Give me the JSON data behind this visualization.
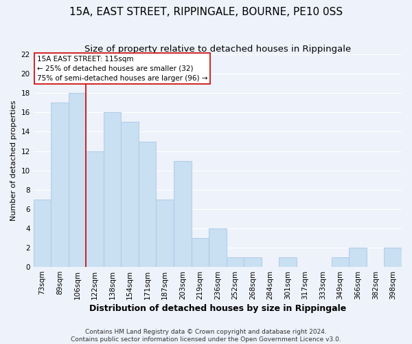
{
  "title": "15A, EAST STREET, RIPPINGALE, BOURNE, PE10 0SS",
  "subtitle": "Size of property relative to detached houses in Rippingale",
  "xlabel": "Distribution of detached houses by size in Rippingale",
  "ylabel": "Number of detached properties",
  "bar_labels": [
    "73sqm",
    "89sqm",
    "106sqm",
    "122sqm",
    "138sqm",
    "154sqm",
    "171sqm",
    "187sqm",
    "203sqm",
    "219sqm",
    "236sqm",
    "252sqm",
    "268sqm",
    "284sqm",
    "301sqm",
    "317sqm",
    "333sqm",
    "349sqm",
    "366sqm",
    "382sqm",
    "398sqm"
  ],
  "bar_values": [
    7,
    17,
    18,
    12,
    16,
    15,
    13,
    7,
    11,
    3,
    4,
    1,
    1,
    0,
    1,
    0,
    0,
    1,
    2,
    0,
    2
  ],
  "bar_color": "#c9dff2",
  "bar_edge_color": "#a8c8e8",
  "vline_x": 2.5,
  "vline_color": "#cc0000",
  "annotation_title": "15A EAST STREET: 115sqm",
  "annotation_line1": "← 25% of detached houses are smaller (32)",
  "annotation_line2": "75% of semi-detached houses are larger (96) →",
  "annotation_box_color": "#ffffff",
  "annotation_box_edge": "#cc0000",
  "ylim": [
    0,
    22
  ],
  "yticks": [
    0,
    2,
    4,
    6,
    8,
    10,
    12,
    14,
    16,
    18,
    20,
    22
  ],
  "footer1": "Contains HM Land Registry data © Crown copyright and database right 2024.",
  "footer2": "Contains public sector information licensed under the Open Government Licence v3.0.",
  "bg_color": "#eef2fa",
  "grid_color": "#ffffff",
  "title_fontsize": 11,
  "subtitle_fontsize": 9.5,
  "ylabel_fontsize": 8,
  "xlabel_fontsize": 9,
  "tick_fontsize": 7.5,
  "footer_fontsize": 6.5
}
